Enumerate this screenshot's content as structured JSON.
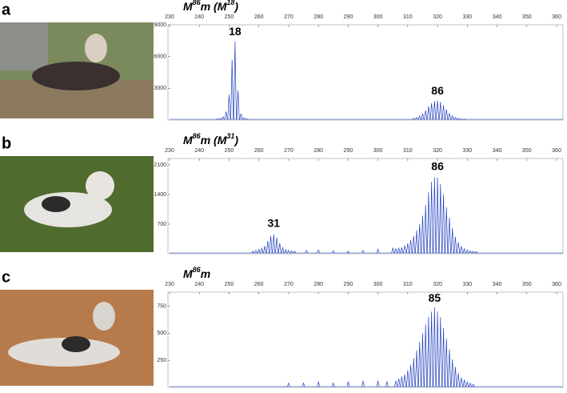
{
  "chart_data": [
    {
      "type": "stem",
      "panel": "a",
      "title_parts": [
        "M",
        "86",
        "m (M",
        "18",
        ")"
      ],
      "x": [
        246,
        247,
        248,
        249,
        250,
        251,
        252,
        253,
        254,
        255,
        256,
        312,
        313,
        314,
        315,
        316,
        317,
        318,
        319,
        320,
        321,
        322,
        323,
        324,
        325,
        326,
        327,
        328,
        329
      ],
      "values": [
        100,
        150,
        300,
        800,
        2400,
        5700,
        7400,
        2800,
        600,
        200,
        100,
        150,
        250,
        400,
        600,
        900,
        1300,
        1600,
        1800,
        1850,
        1700,
        1400,
        1000,
        650,
        400,
        250,
        150,
        100,
        80
      ],
      "color": "#1f3fbf",
      "xlim": [
        230,
        360
      ],
      "xticks": [
        230,
        240,
        250,
        260,
        270,
        280,
        290,
        300,
        310,
        320,
        330,
        340,
        350,
        360
      ],
      "ylim": [
        0,
        9000
      ],
      "yticks": [
        3000,
        6000,
        9000
      ],
      "annotations": [
        {
          "text": "18",
          "x": 252,
          "y": 8300
        },
        {
          "text": "86",
          "x": 320,
          "y": 2700
        }
      ]
    },
    {
      "type": "stem",
      "panel": "b",
      "title_parts": [
        "M",
        "86",
        "m (M",
        "31",
        ")"
      ],
      "x": [
        258,
        259,
        260,
        261,
        262,
        263,
        264,
        265,
        266,
        267,
        268,
        269,
        270,
        271,
        272,
        276,
        280,
        285,
        290,
        295,
        300,
        305,
        306,
        307,
        308,
        309,
        310,
        311,
        312,
        313,
        314,
        315,
        316,
        317,
        318,
        319,
        320,
        321,
        322,
        323,
        324,
        325,
        326,
        327,
        328,
        329,
        330,
        331,
        332,
        333
      ],
      "values": [
        60,
        80,
        100,
        130,
        180,
        300,
        420,
        450,
        380,
        250,
        150,
        100,
        80,
        70,
        60,
        80,
        90,
        70,
        60,
        80,
        110,
        130,
        120,
        130,
        150,
        200,
        250,
        320,
        420,
        550,
        700,
        900,
        1150,
        1450,
        1700,
        1800,
        1800,
        1650,
        1400,
        1100,
        850,
        600,
        400,
        270,
        180,
        120,
        90,
        70,
        60,
        50
      ],
      "color": "#1f3fbf",
      "xlim": [
        230,
        360
      ],
      "xticks": [
        230,
        240,
        250,
        260,
        270,
        280,
        290,
        300,
        310,
        320,
        330,
        340,
        350,
        360
      ],
      "ylim": [
        0,
        2250
      ],
      "yticks": [
        700,
        1400,
        2100
      ],
      "annotations": [
        {
          "text": "31",
          "x": 265,
          "y": 700
        },
        {
          "text": "86",
          "x": 320,
          "y": 2050
        }
      ]
    },
    {
      "type": "stem",
      "panel": "c",
      "title_parts": [
        "M",
        "86",
        "m"
      ],
      "x": [
        270,
        275,
        280,
        285,
        290,
        295,
        300,
        303,
        306,
        307,
        308,
        309,
        310,
        311,
        312,
        313,
        314,
        315,
        316,
        317,
        318,
        319,
        320,
        321,
        322,
        323,
        324,
        325,
        326,
        327,
        328,
        329,
        330,
        331,
        332
      ],
      "values": [
        40,
        40,
        50,
        40,
        50,
        60,
        60,
        55,
        60,
        80,
        100,
        120,
        160,
        210,
        270,
        340,
        420,
        500,
        580,
        650,
        700,
        740,
        700,
        650,
        550,
        450,
        350,
        260,
        190,
        130,
        90,
        70,
        50,
        40,
        30
      ],
      "color": "#1f3fbf",
      "xlim": [
        230,
        360
      ],
      "xticks": [
        230,
        240,
        250,
        260,
        270,
        280,
        290,
        300,
        310,
        320,
        330,
        340,
        350,
        360
      ],
      "ylim": [
        0,
        880
      ],
      "yticks": [
        250,
        500,
        750
      ],
      "annotations": [
        {
          "text": "85",
          "x": 319,
          "y": 820
        }
      ]
    }
  ]
}
